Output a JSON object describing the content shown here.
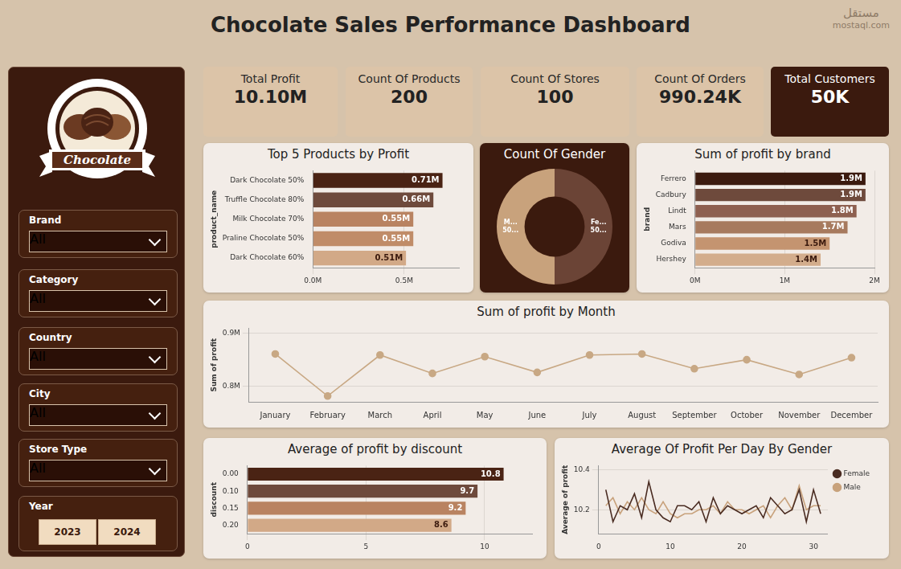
{
  "title": "Chocolate Sales Performance Dashboard",
  "watermark": [
    "مستقل",
    "mostaql.com"
  ],
  "logo_text": "Chocolate",
  "kpis": [
    {
      "label": "Total Profit",
      "value": "10.10M"
    },
    {
      "label": "Count Of Products",
      "value": "200"
    },
    {
      "label": "Count Of Stores",
      "value": "100"
    },
    {
      "label": "Count Of Orders",
      "value": "990.24K"
    },
    {
      "label": "Total Customers",
      "value": "50K"
    }
  ],
  "filters": [
    {
      "label": "Brand",
      "value": "All"
    },
    {
      "label": "Category",
      "value": "All"
    },
    {
      "label": "Country",
      "value": "All"
    },
    {
      "label": "City",
      "value": "All"
    },
    {
      "label": "Store Type",
      "value": "All"
    }
  ],
  "year_filter": {
    "label": "Year",
    "options": [
      "2023",
      "2024"
    ]
  },
  "chart_data": [
    {
      "type": "bar",
      "title": "Top 5 Products by Profit",
      "orientation": "horizontal",
      "y_label": "product_name",
      "categories": [
        "Dark Chocolate 50%",
        "Truffle Chocolate 80%",
        "Milk Chocolate 70%",
        "Praline Chocolate 50%",
        "Dark Chocolate 60%"
      ],
      "values": [
        0.71,
        0.66,
        0.55,
        0.55,
        0.51
      ],
      "value_labels": [
        "0.71M",
        "0.66M",
        "0.55M",
        "0.55M",
        "0.51M"
      ],
      "colors": [
        "#4a2314",
        "#6e4a3c",
        "#b98361",
        "#c08c68",
        "#d2a987"
      ],
      "xlim": [
        0,
        0.8
      ],
      "xticks": [
        {
          "value": 0,
          "label": "0.0M"
        },
        {
          "value": 0.5,
          "label": "0.5M"
        }
      ],
      "data_labels": true,
      "grid": true
    },
    {
      "type": "doughnut",
      "title": "Count Of Gender",
      "categories": [
        "M...",
        "Fe..."
      ],
      "values": [
        50,
        50
      ],
      "value_labels": [
        "50...",
        "50..."
      ],
      "colors": [
        "#c8a27c",
        "#6b4436"
      ],
      "data_labels": true
    },
    {
      "type": "bar",
      "title": "Sum of profit by brand",
      "orientation": "horizontal",
      "y_label": "brand",
      "categories": [
        "Ferrero",
        "Cadbury",
        "Lindt",
        "Mars",
        "Godiva",
        "Hershey"
      ],
      "values": [
        1.9,
        1.9,
        1.8,
        1.7,
        1.5,
        1.4
      ],
      "value_labels": [
        "1.9M",
        "1.9M",
        "1.8M",
        "1.7M",
        "1.5M",
        "1.4M"
      ],
      "colors": [
        "#3b1a0e",
        "#6e4a3c",
        "#8e6050",
        "#a77a5e",
        "#c49470",
        "#d3ad8c"
      ],
      "xlim": [
        0,
        2
      ],
      "xticks": [
        {
          "value": 0,
          "label": "0M"
        },
        {
          "value": 1,
          "label": "1M"
        },
        {
          "value": 2,
          "label": "2M"
        }
      ],
      "data_labels": true,
      "grid": true
    },
    {
      "type": "line",
      "title": "Sum of profit by Month",
      "y_label": "Sum of profit",
      "categories": [
        "January",
        "February",
        "March",
        "April",
        "May",
        "June",
        "July",
        "August",
        "September",
        "October",
        "November",
        "December"
      ],
      "values": [
        0.861,
        0.781,
        0.859,
        0.824,
        0.856,
        0.826,
        0.859,
        0.861,
        0.833,
        0.85,
        0.822,
        0.854
      ],
      "color": "#c8a884",
      "marker": "circle",
      "line_style": "solid",
      "ylim": [
        0.77,
        0.91
      ],
      "yticks": [
        {
          "value": 0.8,
          "label": "0.8M"
        },
        {
          "value": 0.9,
          "label": "0.9M"
        }
      ],
      "grid": true
    },
    {
      "type": "bar",
      "title": "Average of profit by discount",
      "orientation": "horizontal",
      "y_label": "discount",
      "categories": [
        "0.00",
        "0.10",
        "0.15",
        "0.20"
      ],
      "values": [
        10.8,
        9.7,
        9.2,
        8.6
      ],
      "colors": [
        "#4a2314",
        "#6e4a3c",
        "#b98361",
        "#d2a987"
      ],
      "xlim": [
        0,
        12
      ],
      "xticks": [
        0,
        5,
        10
      ],
      "data_labels": true,
      "grid": true
    },
    {
      "type": "line",
      "title": "Average Of Profit Per Day By Gender",
      "y_label": "Average of profit",
      "x": [
        1,
        2,
        3,
        4,
        5,
        6,
        7,
        8,
        9,
        10,
        11,
        12,
        13,
        14,
        15,
        16,
        17,
        18,
        19,
        20,
        21,
        22,
        23,
        24,
        25,
        26,
        27,
        28,
        29,
        30,
        31
      ],
      "series": [
        {
          "name": "Female",
          "color": "#4a2c22",
          "values": [
            10.3,
            10.14,
            10.22,
            10.2,
            10.28,
            10.16,
            10.34,
            10.2,
            10.16,
            10.14,
            10.22,
            10.22,
            10.2,
            10.24,
            10.14,
            10.26,
            10.18,
            10.22,
            10.2,
            10.18,
            10.2,
            10.22,
            10.16,
            10.26,
            10.22,
            10.18,
            10.2,
            10.3,
            10.14,
            10.3,
            10.18
          ]
        },
        {
          "name": "Male",
          "color": "#c8a27c",
          "values": [
            10.22,
            10.26,
            10.18,
            10.24,
            10.2,
            10.26,
            10.2,
            10.18,
            10.24,
            10.18,
            10.16,
            10.18,
            10.18,
            10.2,
            10.2,
            10.22,
            10.18,
            10.24,
            10.2,
            10.2,
            10.18,
            10.2,
            10.22,
            10.16,
            10.22,
            10.26,
            10.2,
            10.32,
            10.2,
            10.22,
            10.22
          ]
        }
      ],
      "xlim": [
        0,
        32
      ],
      "xticks": [
        0,
        10,
        20,
        30
      ],
      "ylim": [
        10.08,
        10.42
      ],
      "yticks": [
        10.2,
        10.4
      ],
      "legend": "right",
      "grid": true
    }
  ]
}
